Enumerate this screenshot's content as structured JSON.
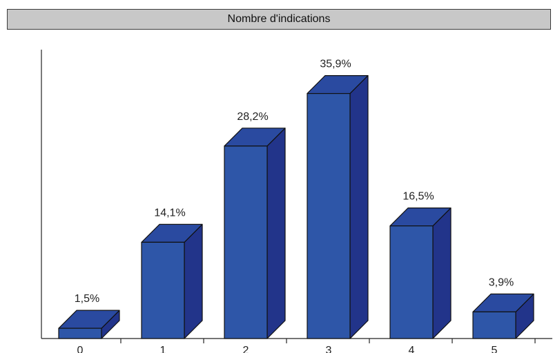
{
  "chart_data": {
    "type": "bar",
    "title": "Nombre d'indications",
    "categories": [
      "0",
      "1",
      "2",
      "3",
      "4",
      "5"
    ],
    "values": [
      1.5,
      14.1,
      28.2,
      35.9,
      16.5,
      3.9
    ],
    "value_labels": [
      "1,5%",
      "14,1%",
      "28,2%",
      "35,9%",
      "16,5%",
      "3,9%"
    ],
    "unit": "%",
    "ylim": [
      0,
      40
    ],
    "grid": false,
    "style": "3d",
    "colors": {
      "front": "#2e56a8",
      "top": "#2a4aa0",
      "side": "#22348a",
      "outline": "#111111"
    }
  }
}
